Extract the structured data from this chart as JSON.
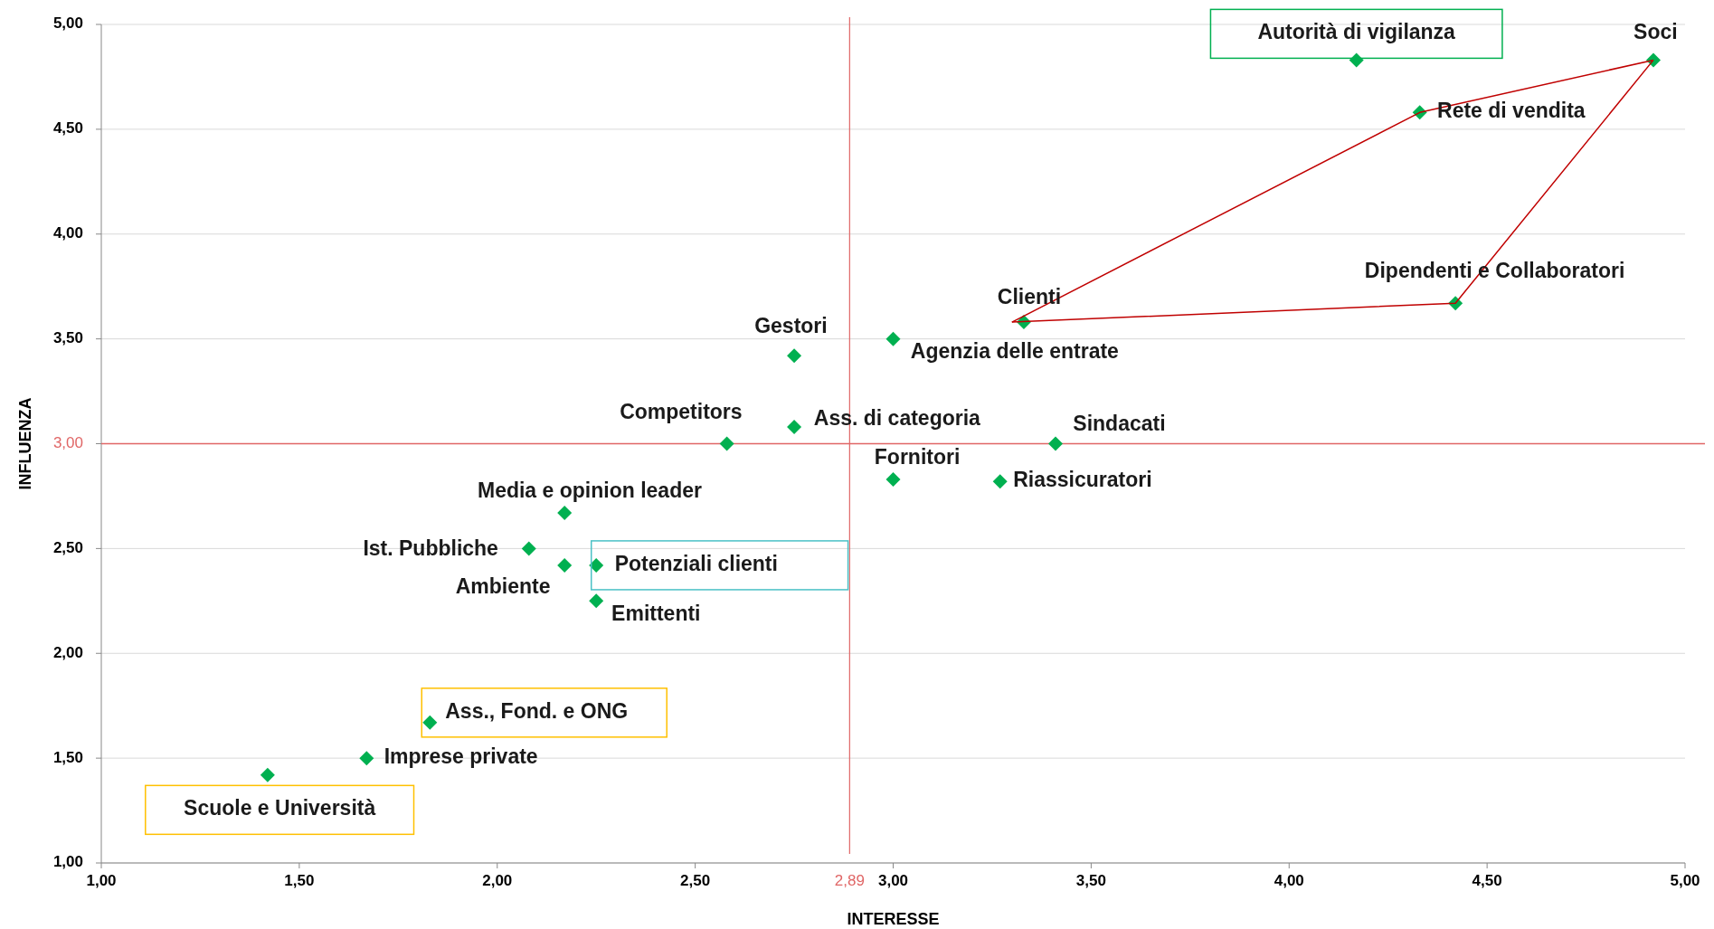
{
  "chart_data": {
    "type": "scatter",
    "xlabel": "INTERESSE",
    "ylabel": "INFLUENZA",
    "xlim": [
      1,
      5
    ],
    "ylim": [
      1,
      5
    ],
    "xticks": [
      {
        "value": 1,
        "label": "1,00"
      },
      {
        "value": 1.5,
        "label": "1,50"
      },
      {
        "value": 2,
        "label": "2,00"
      },
      {
        "value": 2.5,
        "label": "2,50"
      },
      {
        "value": 3,
        "label": "3,00"
      },
      {
        "value": 3.5,
        "label": "3,50"
      },
      {
        "value": 4,
        "label": "4,00"
      },
      {
        "value": 4.5,
        "label": "4,50"
      },
      {
        "value": 5,
        "label": "5,00"
      }
    ],
    "yticks": [
      {
        "value": 1,
        "label": "1,00"
      },
      {
        "value": 1.5,
        "label": "1,50"
      },
      {
        "value": 2,
        "label": "2,00"
      },
      {
        "value": 2.5,
        "label": "2,50"
      },
      {
        "value": 3,
        "label": null
      },
      {
        "value": 3.5,
        "label": "3,50"
      },
      {
        "value": 4,
        "label": "4,00"
      },
      {
        "value": 4.5,
        "label": "4,50"
      },
      {
        "value": 5,
        "label": "5,00"
      }
    ],
    "grid": "y",
    "marker": "diamond",
    "series": [
      {
        "color": "#00b050",
        "x": [
          4.17,
          4.92,
          4.33,
          4.42,
          3.33,
          3.0,
          2.75,
          2.75,
          2.58,
          3.41,
          3.0,
          3.27,
          2.17,
          2.08,
          2.17,
          2.25,
          2.25,
          1.83,
          1.67,
          1.42
        ],
        "values": [
          4.83,
          4.83,
          4.58,
          3.67,
          3.58,
          3.5,
          3.42,
          3.08,
          3.0,
          3.0,
          2.83,
          2.82,
          2.67,
          2.5,
          2.42,
          2.42,
          2.25,
          1.67,
          1.5,
          1.42
        ]
      },
      {
        "type": "line",
        "color": "#c00000",
        "marker": "none",
        "line_style": "solid",
        "x": [
          3.3,
          4.33,
          4.92
        ],
        "values": [
          3.58,
          4.58,
          4.83
        ]
      },
      {
        "type": "line",
        "color": "#c00000",
        "marker": "none",
        "line_style": "solid",
        "x": [
          3.3,
          4.42,
          4.92
        ],
        "values": [
          3.58,
          3.67,
          4.83
        ]
      }
    ],
    "ref_lines": [
      {
        "axis": "x",
        "value": 2.89,
        "label": "2,89",
        "color": "#e06666"
      },
      {
        "axis": "y",
        "value": 3.0,
        "label": "3,00",
        "color": "#e06666"
      }
    ],
    "annotations": [
      {
        "text": "Autorità di vigilanza",
        "x": 4.17,
        "y": 4.83
      },
      {
        "text": "Soci",
        "x": 4.92,
        "y": 4.83
      },
      {
        "text": "Rete di vendita",
        "x": 4.33,
        "y": 4.58
      },
      {
        "text": "Dipendenti e Collaboratori",
        "x": 4.42,
        "y": 3.67
      },
      {
        "text": "Clienti",
        "x": 3.33,
        "y": 3.58
      },
      {
        "text": "Agenzia delle entrate",
        "x": 3.0,
        "y": 3.5
      },
      {
        "text": "Gestori",
        "x": 2.75,
        "y": 3.42
      },
      {
        "text": "Ass. di categoria",
        "x": 2.75,
        "y": 3.08
      },
      {
        "text": "Competitors",
        "x": 2.58,
        "y": 3.0
      },
      {
        "text": "Sindacati",
        "x": 3.41,
        "y": 3.0
      },
      {
        "text": "Fornitori",
        "x": 3.0,
        "y": 2.83
      },
      {
        "text": "Riassicuratori",
        "x": 3.27,
        "y": 2.82
      },
      {
        "text": "Media e opinion leader",
        "x": 2.17,
        "y": 2.67
      },
      {
        "text": "Ist. Pubbliche",
        "x": 2.08,
        "y": 2.5
      },
      {
        "text": "Ambiente",
        "x": 2.17,
        "y": 2.42
      },
      {
        "text": "Potenziali clienti",
        "x": 2.25,
        "y": 2.42
      },
      {
        "text": "Emittenti",
        "x": 2.25,
        "y": 2.25
      },
      {
        "text": "Ass., Fond. e ONG",
        "x": 1.83,
        "y": 1.67
      },
      {
        "text": "Imprese private",
        "x": 1.67,
        "y": 1.5
      },
      {
        "text": "Scuole e Università",
        "x": 1.42,
        "y": 1.42
      }
    ]
  }
}
